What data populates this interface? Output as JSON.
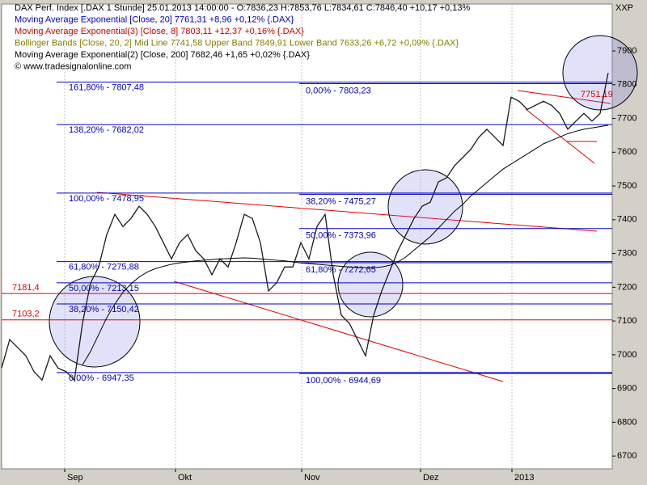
{
  "chart_data": {
    "type": "line",
    "title": "XXP",
    "legend_lines": [
      "DAX Perf. Index [.DAX  1 Stunde] 25.01.2013 14:00:00 - O:7836,23 H:7853,76 L:7834,61 C:7846,40 +10,17 +0,13%",
      "Moving Average Exponential [Close, 20] 7761,31 +8,96 +0,12% {.DAX}",
      "Moving Average Exponential(3) [Close, 8] 7803,11 +12,37 +0,16% {.DAX}",
      "Bollinger Bands [Close, 20, 2] Mid Line 7741,58 Upper Band 7849,91 Lower Band 7633,26 +6,72 +0,09% {.DAX}",
      "Moving Average Exponential(2) [Close, 200] 7682,46 +1,65 +0,02% {.DAX}",
      "© www.tradesignalonline.com"
    ],
    "legend_colors": [
      "#000000",
      "#0000cc",
      "#cc0000",
      "#808000",
      "#000000",
      "#000000"
    ],
    "x": [
      0,
      1,
      2,
      3,
      4,
      5,
      6,
      7,
      8,
      9,
      10,
      11,
      12,
      13,
      14,
      15,
      16,
      17,
      18,
      19,
      20,
      21,
      22,
      23,
      24,
      25,
      26,
      27,
      28,
      29,
      30,
      31,
      32,
      33,
      34,
      35,
      36,
      37,
      38,
      39,
      40,
      41,
      42,
      43,
      44,
      45,
      46,
      47,
      48,
      49,
      50,
      51,
      52,
      53,
      54,
      55,
      56,
      57,
      58,
      59,
      60,
      61,
      62,
      63,
      64,
      65,
      66,
      67,
      68,
      69,
      70,
      71,
      72,
      73,
      74,
      75
    ],
    "series": [
      {
        "color": "#1a1a1a",
        "values": [
          6961,
          7045,
          7021,
          6997,
          6950,
          6925,
          6997,
          6960,
          6950,
          6925,
          7093,
          7213,
          7260,
          7356,
          7416,
          7380,
          7404,
          7440,
          7416,
          7380,
          7332,
          7284,
          7332,
          7356,
          7308,
          7284,
          7237,
          7284,
          7260,
          7332,
          7416,
          7404,
          7332,
          7189,
          7213,
          7260,
          7260,
          7332,
          7284,
          7380,
          7416,
          7237,
          7117,
          7093,
          7045,
          6997,
          7117,
          7189,
          7249,
          7308,
          7356,
          7404,
          7440,
          7452,
          7512,
          7524,
          7560,
          7584,
          7608,
          7644,
          7668,
          7644,
          7620,
          7763,
          7751,
          7727,
          7739,
          7751,
          7739,
          7715,
          7668,
          7692,
          7715,
          7692,
          7715,
          7835
        ]
      },
      {
        "color": "#000000",
        "values": [
          null,
          null,
          null,
          null,
          null,
          null,
          null,
          null,
          null,
          null,
          6970,
          7010,
          7060,
          7110,
          7150,
          7185,
          7210,
          7230,
          7245,
          7255,
          7262,
          7268,
          7272,
          7275,
          7278,
          7280,
          7282,
          7284,
          7285,
          7286,
          7287,
          7286,
          7284,
          7282,
          7280,
          7278,
          7275,
          7272,
          7270,
          7268,
          7266,
          7264,
          7262,
          7260,
          7258,
          7258,
          7258,
          7260,
          7265,
          7275,
          7290,
          7310,
          7330,
          7350,
          7375,
          7400,
          7425,
          7445,
          7470,
          7490,
          7510,
          7530,
          7550,
          7565,
          7580,
          7595,
          7610,
          7625,
          7635,
          7645,
          7655,
          7662,
          7668,
          7672,
          7676,
          7680
        ]
      }
    ],
    "xlim": [
      0,
      75.5
    ],
    "xticks": [
      {
        "value": 7.8,
        "label": "Sep"
      },
      {
        "value": 21.5,
        "label": "Okt"
      },
      {
        "value": 37.1,
        "label": "Nov"
      },
      {
        "value": 51.8,
        "label": "Dez"
      },
      {
        "value": 63.1,
        "label": "2013"
      }
    ],
    "ylim": [
      6662,
      8039
    ],
    "yticks": [
      6700,
      6800,
      6900,
      7000,
      7100,
      7200,
      7300,
      7400,
      7500,
      7600,
      7700,
      7800,
      7900
    ],
    "levels_left": [
      {
        "value": 7807.48,
        "label": "161,80% - 7807,48"
      },
      {
        "value": 7682.02,
        "label": "138,20% - 7682,02"
      },
      {
        "value": 7478.95,
        "label": "100,00% - 7478,95"
      },
      {
        "value": 7275.88,
        "label": "61,80% - 7275,88"
      },
      {
        "value": 7213.15,
        "label": "50,00% - 7213,15"
      },
      {
        "value": 7150.42,
        "label": "38,20% - 7150,42"
      },
      {
        "value": 6947.35,
        "label": "0,00% - 6947,35"
      }
    ],
    "levels_right": [
      {
        "value": 7803.23,
        "label": "0,00% - 7803,23"
      },
      {
        "value": 7475.27,
        "label": "38,20% - 7475,27"
      },
      {
        "value": 7373.96,
        "label": "50,00% - 7373,96"
      },
      {
        "value": 7272.65,
        "label": "61,80% - 7272,65"
      },
      {
        "value": 6944.69,
        "label": "100,00% - 6944,69"
      }
    ],
    "red_levels": [
      {
        "value": 7181.4,
        "label": "7181,4"
      },
      {
        "value": 7103.2,
        "label": "7103,2"
      }
    ],
    "annotation": {
      "value": 7751.19,
      "label": "7751,19"
    },
    "grid": true
  }
}
